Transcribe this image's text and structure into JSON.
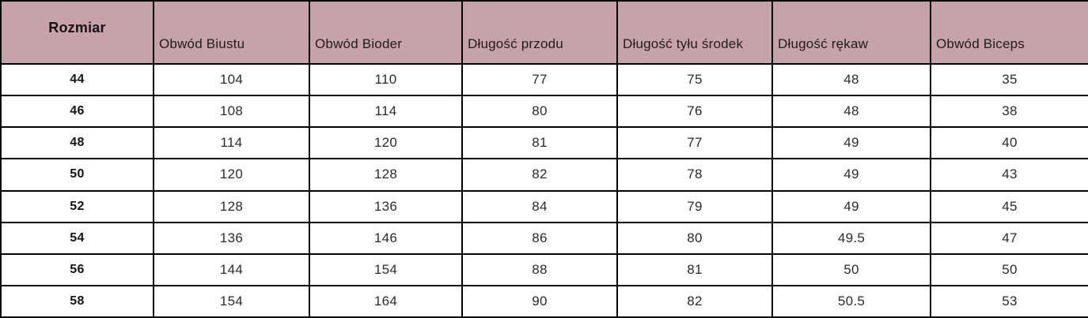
{
  "colors": {
    "header_bg": "#c8a2ab",
    "border": "#000000",
    "header_text": "#1d1d1d",
    "body_text": "#2b2b2b"
  },
  "table": {
    "columns": [
      "Rozmiar",
      "Obwód Biustu",
      "Obwód Bioder",
      "Długość przodu",
      "Długość tyłu środek",
      "Długość rękaw",
      "Obwód Biceps"
    ],
    "rows": [
      [
        "44",
        "104",
        "110",
        "77",
        "75",
        "48",
        "35"
      ],
      [
        "46",
        "108",
        "114",
        "80",
        "76",
        "48",
        "38"
      ],
      [
        "48",
        "114",
        "120",
        "81",
        "77",
        "49",
        "40"
      ],
      [
        "50",
        "120",
        "128",
        "82",
        "78",
        "49",
        "43"
      ],
      [
        "52",
        "128",
        "136",
        "84",
        "79",
        "49",
        "45"
      ],
      [
        "54",
        "136",
        "146",
        "86",
        "80",
        "49.5",
        "47"
      ],
      [
        "56",
        "144",
        "154",
        "88",
        "81",
        "50",
        "50"
      ],
      [
        "58",
        "154",
        "164",
        "90",
        "82",
        "50.5",
        "53"
      ]
    ]
  },
  "chart_data": {
    "type": "table",
    "title": "",
    "columns": [
      "Rozmiar",
      "Obwód Biustu",
      "Obwód Bioder",
      "Długość przodu",
      "Długość tyłu środek",
      "Długość rękaw",
      "Obwód Biceps"
    ],
    "rows": [
      [
        44,
        104,
        110,
        77,
        75,
        48,
        35
      ],
      [
        46,
        108,
        114,
        80,
        76,
        48,
        38
      ],
      [
        48,
        114,
        120,
        81,
        77,
        49,
        40
      ],
      [
        50,
        120,
        128,
        82,
        78,
        49,
        43
      ],
      [
        52,
        128,
        136,
        84,
        79,
        49,
        45
      ],
      [
        54,
        136,
        146,
        86,
        80,
        49.5,
        47
      ],
      [
        56,
        144,
        154,
        88,
        81,
        50,
        50
      ],
      [
        58,
        154,
        164,
        90,
        82,
        50.5,
        53
      ]
    ]
  }
}
